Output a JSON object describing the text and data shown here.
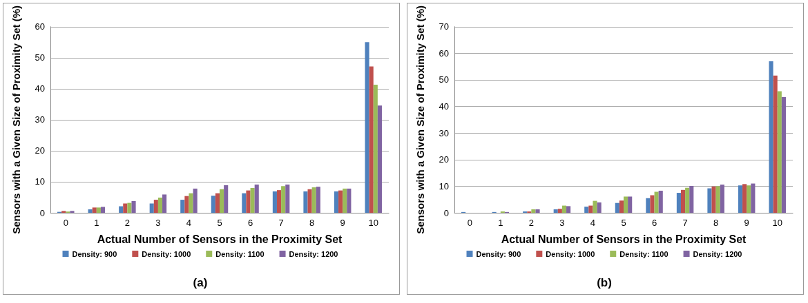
{
  "chart_data": [
    {
      "type": "bar",
      "xlabel": "Actual Number of Sensors in the Proximity Set",
      "ylabel": "Sensors with a Given Size of Proximity Set (%)",
      "categories": [
        "0",
        "1",
        "2",
        "3",
        "4",
        "5",
        "6",
        "7",
        "8",
        "9",
        "10"
      ],
      "ylim": [
        0,
        60
      ],
      "yticks": [
        0,
        10,
        20,
        30,
        40,
        50,
        60
      ],
      "grid": "y",
      "legend": "bottom",
      "annotations": [
        "(a)"
      ],
      "series": [
        {
          "name": "Density: 900",
          "color": "#4f81bd",
          "values": [
            0.3,
            1.1,
            2.1,
            3.0,
            4.2,
            5.5,
            6.3,
            6.9,
            6.9,
            6.9,
            55
          ]
        },
        {
          "name": "Density: 1000",
          "color": "#c0504d",
          "values": [
            0.6,
            1.7,
            3.0,
            4.2,
            5.4,
            6.3,
            7.2,
            7.3,
            7.6,
            7.2,
            47.2
          ]
        },
        {
          "name": "Density: 1100",
          "color": "#9bbb59",
          "values": [
            0.4,
            1.7,
            3.2,
            4.9,
            6.3,
            7.6,
            8.0,
            8.6,
            8.2,
            7.8,
            41.3
          ]
        },
        {
          "name": "Density: 1200",
          "color": "#8064a2",
          "values": [
            0.6,
            1.9,
            3.8,
            5.9,
            7.8,
            8.9,
            9.1,
            9.1,
            8.4,
            7.8,
            34.6
          ]
        }
      ]
    },
    {
      "type": "bar",
      "xlabel": "Actual Number of Sensors in the Proximity Set",
      "ylabel": "Sensors with a Given Size of Proximity Set (%)",
      "categories": [
        "0",
        "1",
        "2",
        "3",
        "4",
        "5",
        "6",
        "7",
        "8",
        "9",
        "10"
      ],
      "ylim": [
        0,
        70
      ],
      "yticks": [
        0,
        10,
        20,
        30,
        40,
        50,
        60,
        70
      ],
      "grid": "y",
      "legend": "bottom",
      "annotations": [
        "(b)"
      ],
      "series": [
        {
          "name": "Density: 900",
          "color": "#4f81bd",
          "values": [
            0.3,
            0.3,
            0.5,
            1.3,
            2.3,
            3.7,
            5.5,
            7.5,
            9.2,
            10.3,
            57
          ]
        },
        {
          "name": "Density: 1000",
          "color": "#c0504d",
          "values": [
            0,
            null,
            0.5,
            1.5,
            2.7,
            4.6,
            6.6,
            8.6,
            9.9,
            10.8,
            51.6
          ]
        },
        {
          "name": "Density: 1100",
          "color": "#9bbb59",
          "values": [
            0,
            0.5,
            1.3,
            2.7,
            4.5,
            6.1,
            7.9,
            9.4,
            10.0,
            10.3,
            45.7
          ]
        },
        {
          "name": "Density: 1200",
          "color": "#8064a2",
          "values": [
            0,
            0.3,
            1.3,
            2.5,
            3.9,
            6.1,
            8.3,
            10.1,
            10.6,
            11.0,
            43.5
          ]
        }
      ]
    }
  ]
}
